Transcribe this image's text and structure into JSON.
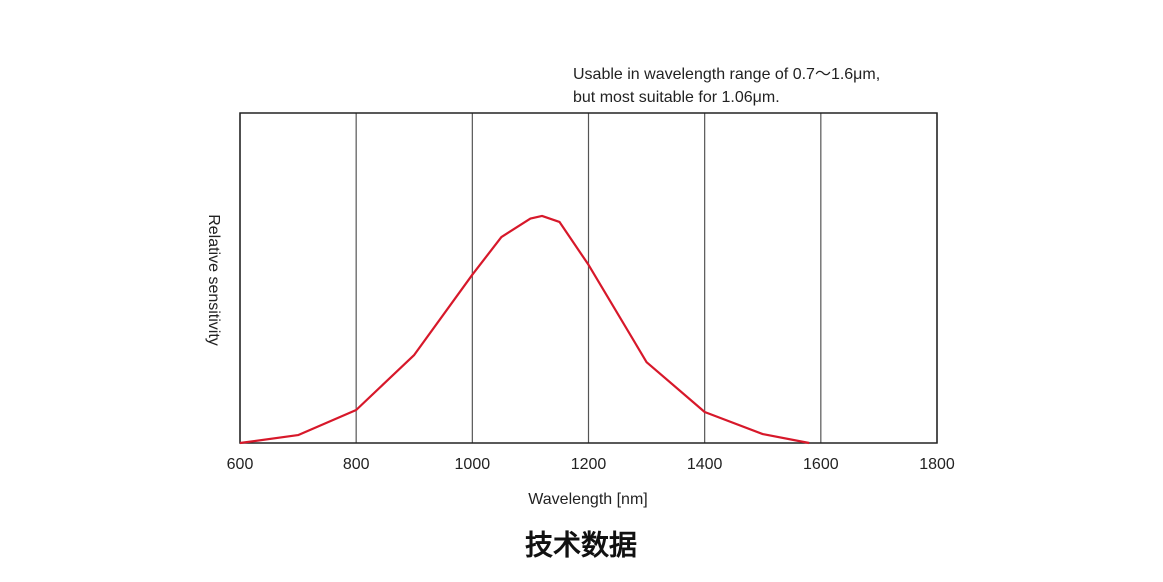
{
  "chart_data": {
    "type": "line",
    "annotation": [
      "Usable in wavelength range of 0.7〜1.6μm,",
      "but most suitable for 1.06μm."
    ],
    "xlabel": "Wavelength [nm]",
    "ylabel": "Relative sensitivity",
    "x": [
      600,
      700,
      800,
      900,
      1000,
      1050,
      1100,
      1120,
      1150,
      1200,
      1300,
      1400,
      1500,
      1580
    ],
    "values": [
      0,
      0.024,
      0.1,
      0.267,
      0.51,
      0.624,
      0.68,
      0.688,
      0.67,
      0.54,
      0.245,
      0.094,
      0.027,
      0
    ],
    "color": "#d7182a",
    "xlim": [
      600,
      1800
    ],
    "xticks": [
      600,
      800,
      1000,
      1200,
      1400,
      1600,
      1800
    ],
    "ylim": [
      0,
      1
    ],
    "grid": true
  },
  "caption": "技术数据"
}
